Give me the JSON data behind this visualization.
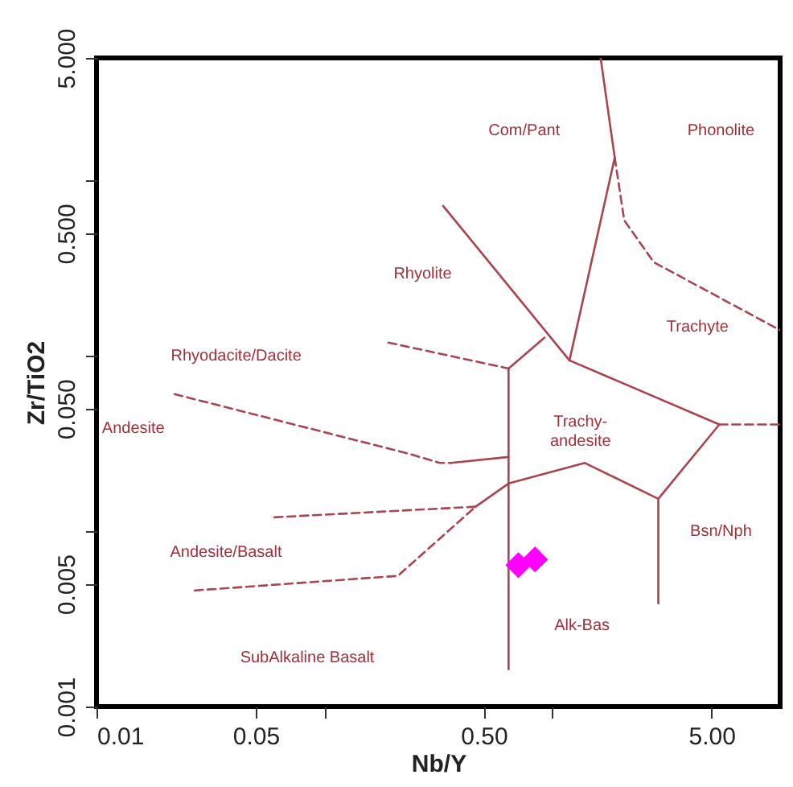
{
  "chart_data": {
    "type": "scatter",
    "xlabel": "Nb/Y",
    "ylabel": "Zr/TiO2",
    "log": "xy",
    "grid": false,
    "xlim": [
      0.01,
      10
    ],
    "ylim": [
      0.001,
      5
    ],
    "xticks": [
      0.01,
      0.05,
      {
        "value": 0.1,
        "label": null
      },
      {
        "value": 0.5,
        "label": "0.50"
      },
      {
        "value": 1,
        "label": null
      },
      {
        "value": 5,
        "label": "5.00"
      }
    ],
    "yticks": [
      0.001,
      0.005,
      {
        "value": 0.01,
        "label": null
      },
      {
        "value": 0.05,
        "label": "0.050"
      },
      {
        "value": 0.1,
        "label": null
      },
      {
        "value": 0.5,
        "label": "0.500"
      },
      {
        "value": 1,
        "label": null
      },
      {
        "value": 5,
        "label": "5.000"
      }
    ],
    "series": [
      {
        "type": "line",
        "color": "#a84550",
        "line_style": "solid",
        "x": [
          0.643,
          0.643
        ],
        "values": [
          0.0847,
          0.00163
        ]
      },
      {
        "type": "line",
        "color": "#a84550",
        "line_style": "solid",
        "x": [
          0.643,
          0.925
        ],
        "values": [
          0.0847,
          0.127
        ]
      },
      {
        "type": "line",
        "color": "#a84550",
        "line_style": "solid",
        "x": [
          0.332,
          1.19
        ],
        "values": [
          0.716,
          0.0942
        ]
      },
      {
        "type": "line",
        "color": "#a84550",
        "line_style": "solid",
        "x": [
          1.19,
          1.88,
          1.63
        ],
        "values": [
          0.0942,
          1.35,
          5
        ]
      },
      {
        "type": "line",
        "color": "#a84550",
        "line_style": "solid",
        "x": [
          1.19,
          5.41,
          2.92,
          2.92
        ],
        "values": [
          0.0942,
          0.0406,
          0.0153,
          0.00388
        ]
      },
      {
        "type": "line",
        "color": "#a84550",
        "line_style": "solid",
        "x": [
          2.92,
          1.39,
          0.643,
          0.461
        ],
        "values": [
          0.0153,
          0.0245,
          0.0187,
          0.0138
        ]
      },
      {
        "type": "line",
        "color": "#a84550",
        "line_style": "solid",
        "x": [
          0.359,
          0.643
        ],
        "values": [
          0.0245,
          0.0265
        ]
      },
      {
        "type": "line",
        "color": "#a84550",
        "line_style": "dashed",
        "x": [
          1.88,
          2.07,
          2.79,
          10
        ],
        "values": [
          1.35,
          0.592,
          0.342,
          0.14
        ]
      },
      {
        "type": "line",
        "color": "#a84550",
        "line_style": "dashed",
        "x": [
          5.41,
          10
        ],
        "values": [
          0.0406,
          0.0406
        ]
      },
      {
        "type": "line",
        "color": "#a84550",
        "line_style": "dashed",
        "x": [
          0.191,
          0.643
        ],
        "values": [
          0.119,
          0.0847
        ]
      },
      {
        "type": "line",
        "color": "#a84550",
        "line_style": "dashed",
        "x": [
          0.022,
          0.234,
          0.321,
          0.359
        ],
        "values": [
          0.0605,
          0.0277,
          0.0245,
          0.0245
        ]
      },
      {
        "type": "line",
        "color": "#a84550",
        "line_style": "dashed",
        "x": [
          0.0604,
          0.461
        ],
        "values": [
          0.012,
          0.0138
        ]
      },
      {
        "type": "line",
        "color": "#a84550",
        "line_style": "dashed",
        "x": [
          0.027,
          0.21,
          0.461
        ],
        "values": [
          0.00459,
          0.00556,
          0.0138
        ]
      },
      {
        "marker": "diamond",
        "color": "#ff00ff",
        "x": [
          0.71,
          0.84
        ],
        "values": [
          0.0064,
          0.0069
        ]
      }
    ],
    "annotations": [
      "Com/Pant",
      "Phonolite",
      "Rhyolite",
      "Trachyte",
      "Rhyodacite/Dacite",
      "Trachy-\nandesite",
      "Andesite",
      "Bsn/Nph",
      "Andesite/Basalt",
      "Alk-Bas",
      "SubAlkaline Basalt"
    ]
  }
}
